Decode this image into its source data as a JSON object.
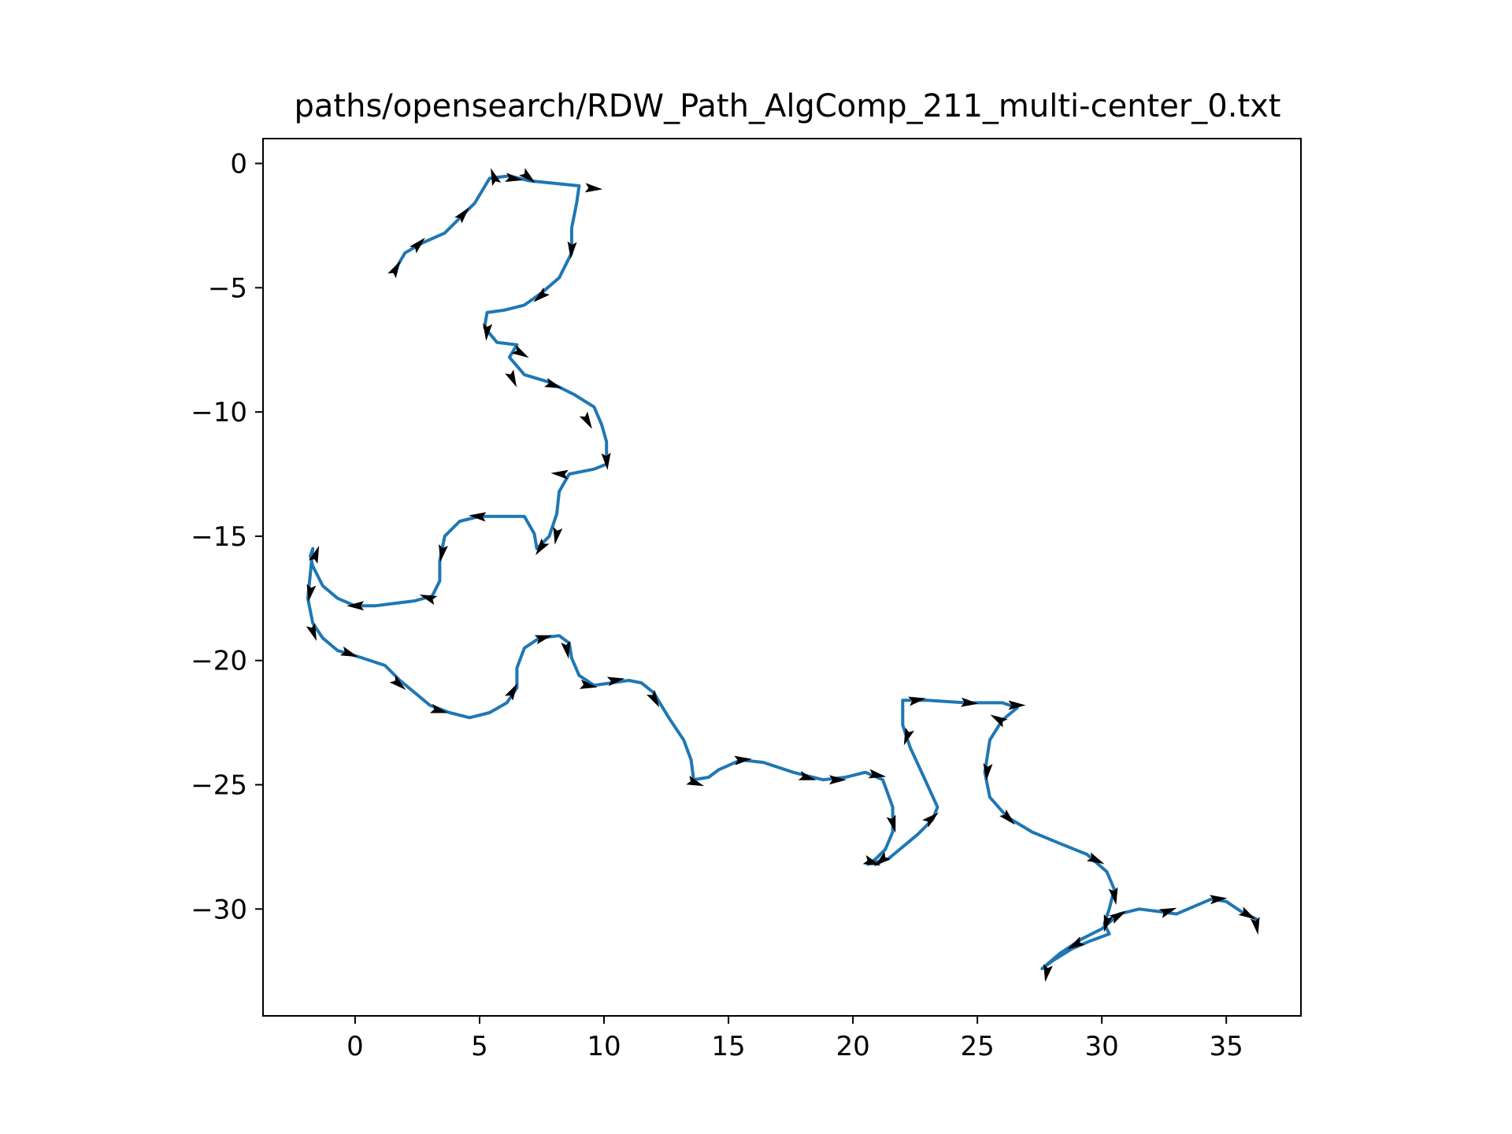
{
  "chart_data": {
    "type": "line",
    "title": "paths/opensearch/RDW_Path_AlgComp_211_multi-center_0.txt",
    "xlabel": "",
    "ylabel": "",
    "xlim": [
      -3.7,
      38.0
    ],
    "ylim": [
      -34.3,
      1.0
    ],
    "x_ticks": [
      0,
      5,
      10,
      15,
      20,
      25,
      30,
      35
    ],
    "x_tick_labels": [
      "0",
      "5",
      "10",
      "15",
      "20",
      "25",
      "30",
      "35"
    ],
    "y_ticks": [
      0,
      -5,
      -10,
      -15,
      -20,
      -25,
      -30
    ],
    "y_tick_labels": [
      "0",
      "−5",
      "−10",
      "−15",
      "−20",
      "−25",
      "−30"
    ],
    "grid": false,
    "legend": "none",
    "line_color": "#1f77b4",
    "arrow_color": "#000000",
    "path": [
      [
        1.6,
        -4.3
      ],
      [
        2.0,
        -3.6
      ],
      [
        2.7,
        -3.2
      ],
      [
        3.6,
        -2.8
      ],
      [
        4.2,
        -2.2
      ],
      [
        4.8,
        -1.6
      ],
      [
        5.4,
        -0.6
      ],
      [
        6.2,
        -0.5
      ],
      [
        7.0,
        -0.7
      ],
      [
        8.0,
        -0.8
      ],
      [
        9.0,
        -0.9
      ],
      [
        8.9,
        -1.6
      ],
      [
        8.7,
        -2.6
      ],
      [
        8.7,
        -3.6
      ],
      [
        8.2,
        -4.6
      ],
      [
        7.5,
        -5.2
      ],
      [
        6.8,
        -5.7
      ],
      [
        6.0,
        -5.9
      ],
      [
        5.3,
        -6.0
      ],
      [
        5.2,
        -6.6
      ],
      [
        5.7,
        -7.2
      ],
      [
        6.5,
        -7.3
      ],
      [
        6.2,
        -7.8
      ],
      [
        6.8,
        -8.5
      ],
      [
        7.8,
        -8.8
      ],
      [
        8.8,
        -9.3
      ],
      [
        9.6,
        -9.8
      ],
      [
        9.9,
        -10.5
      ],
      [
        10.1,
        -11.2
      ],
      [
        10.1,
        -12.1
      ],
      [
        9.6,
        -12.3
      ],
      [
        8.6,
        -12.5
      ],
      [
        8.2,
        -13.2
      ],
      [
        8.1,
        -14.1
      ],
      [
        7.8,
        -15.0
      ],
      [
        7.3,
        -15.5
      ],
      [
        7.2,
        -14.9
      ],
      [
        6.8,
        -14.2
      ],
      [
        6.0,
        -14.2
      ],
      [
        5.0,
        -14.2
      ],
      [
        4.2,
        -14.4
      ],
      [
        3.6,
        -15.0
      ],
      [
        3.4,
        -16.0
      ],
      [
        3.4,
        -16.8
      ],
      [
        3.1,
        -17.4
      ],
      [
        2.4,
        -17.6
      ],
      [
        1.6,
        -17.7
      ],
      [
        0.8,
        -17.8
      ],
      [
        0.0,
        -17.8
      ],
      [
        -0.7,
        -17.5
      ],
      [
        -1.3,
        -17.0
      ],
      [
        -1.7,
        -16.2
      ],
      [
        -1.8,
        -15.8
      ],
      [
        -1.7,
        -15.5
      ],
      [
        -1.8,
        -16.5
      ],
      [
        -1.9,
        -17.5
      ],
      [
        -1.7,
        -18.5
      ],
      [
        -1.3,
        -19.1
      ],
      [
        -0.7,
        -19.6
      ],
      [
        0.3,
        -19.9
      ],
      [
        1.2,
        -20.2
      ],
      [
        1.8,
        -20.8
      ],
      [
        2.4,
        -21.3
      ],
      [
        3.0,
        -21.8
      ],
      [
        3.8,
        -22.1
      ],
      [
        4.6,
        -22.3
      ],
      [
        5.4,
        -22.1
      ],
      [
        6.1,
        -21.7
      ],
      [
        6.5,
        -21.1
      ],
      [
        6.5,
        -20.3
      ],
      [
        6.8,
        -19.5
      ],
      [
        7.4,
        -19.1
      ],
      [
        8.2,
        -19.0
      ],
      [
        8.6,
        -19.3
      ],
      [
        8.7,
        -19.9
      ],
      [
        9.0,
        -20.6
      ],
      [
        9.6,
        -21.0
      ],
      [
        10.3,
        -20.9
      ],
      [
        11.0,
        -20.8
      ],
      [
        11.5,
        -20.9
      ],
      [
        12.0,
        -21.3
      ],
      [
        12.6,
        -22.3
      ],
      [
        13.2,
        -23.2
      ],
      [
        13.5,
        -24.0
      ],
      [
        13.6,
        -24.8
      ],
      [
        14.2,
        -24.7
      ],
      [
        14.6,
        -24.4
      ],
      [
        15.5,
        -24.0
      ],
      [
        16.4,
        -24.1
      ],
      [
        17.6,
        -24.5
      ],
      [
        18.8,
        -24.8
      ],
      [
        19.7,
        -24.7
      ],
      [
        20.5,
        -24.5
      ],
      [
        21.2,
        -24.8
      ],
      [
        21.6,
        -25.9
      ],
      [
        21.6,
        -26.9
      ],
      [
        21.3,
        -27.6
      ],
      [
        20.9,
        -28.0
      ],
      [
        20.6,
        -28.2
      ],
      [
        21.4,
        -28.0
      ],
      [
        22.0,
        -27.5
      ],
      [
        22.6,
        -27.0
      ],
      [
        23.2,
        -26.4
      ],
      [
        23.4,
        -25.9
      ],
      [
        22.9,
        -24.8
      ],
      [
        22.3,
        -23.5
      ],
      [
        22.0,
        -22.6
      ],
      [
        22.0,
        -21.6
      ],
      [
        23.0,
        -21.6
      ],
      [
        24.5,
        -21.7
      ],
      [
        26.0,
        -21.7
      ],
      [
        26.6,
        -21.9
      ],
      [
        26.0,
        -22.4
      ],
      [
        25.5,
        -23.2
      ],
      [
        25.3,
        -24.5
      ],
      [
        25.5,
        -25.5
      ],
      [
        26.2,
        -26.3
      ],
      [
        27.2,
        -26.9
      ],
      [
        28.4,
        -27.4
      ],
      [
        29.4,
        -27.8
      ],
      [
        30.2,
        -28.5
      ],
      [
        30.5,
        -29.2
      ],
      [
        30.3,
        -30.0
      ],
      [
        30.1,
        -30.6
      ],
      [
        30.3,
        -31.0
      ],
      [
        29.5,
        -31.3
      ],
      [
        28.8,
        -31.6
      ],
      [
        28.0,
        -32.1
      ],
      [
        27.6,
        -32.4
      ],
      [
        28.3,
        -31.8
      ],
      [
        29.2,
        -31.2
      ],
      [
        30.0,
        -30.8
      ],
      [
        30.7,
        -30.2
      ],
      [
        31.5,
        -30.0
      ],
      [
        32.3,
        -30.1
      ],
      [
        33.0,
        -30.2
      ],
      [
        33.7,
        -29.9
      ],
      [
        34.4,
        -29.6
      ],
      [
        35.0,
        -29.7
      ],
      [
        35.6,
        -30.1
      ],
      [
        36.2,
        -30.4
      ]
    ],
    "arrows": [
      [
        1.6,
        -4.3,
        60
      ],
      [
        2.5,
        -3.3,
        45
      ],
      [
        4.3,
        -2.1,
        50
      ],
      [
        5.6,
        -0.6,
        110
      ],
      [
        6.3,
        -0.6,
        -10
      ],
      [
        6.9,
        -0.5,
        -40
      ],
      [
        9.5,
        -1.0,
        -5
      ],
      [
        8.7,
        -3.4,
        -95
      ],
      [
        7.5,
        -5.3,
        -140
      ],
      [
        5.3,
        -6.7,
        -95
      ],
      [
        6.6,
        -7.6,
        -30
      ],
      [
        6.3,
        -8.6,
        -65
      ],
      [
        7.9,
        -8.9,
        -20
      ],
      [
        9.3,
        -10.3,
        -60
      ],
      [
        10.1,
        -11.9,
        -85
      ],
      [
        8.3,
        -12.5,
        175
      ],
      [
        8.1,
        -14.9,
        -100
      ],
      [
        7.5,
        -15.4,
        -125
      ],
      [
        5.0,
        -14.2,
        175
      ],
      [
        3.5,
        -15.6,
        -100
      ],
      [
        3.0,
        -17.5,
        160
      ],
      [
        0.1,
        -17.8,
        180
      ],
      [
        -1.6,
        -15.8,
        70
      ],
      [
        -1.8,
        -17.2,
        -100
      ],
      [
        -1.7,
        -18.8,
        -70
      ],
      [
        -0.3,
        -19.7,
        -20
      ],
      [
        1.7,
        -20.9,
        -40
      ],
      [
        3.3,
        -22.0,
        -15
      ],
      [
        6.3,
        -21.3,
        60
      ],
      [
        7.5,
        -19.1,
        15
      ],
      [
        8.5,
        -19.5,
        -80
      ],
      [
        9.3,
        -21.0,
        -10
      ],
      [
        10.4,
        -20.8,
        10
      ],
      [
        12.0,
        -21.5,
        -60
      ],
      [
        13.6,
        -24.9,
        -20
      ],
      [
        15.5,
        -24.0,
        5
      ],
      [
        18.1,
        -24.7,
        -15
      ],
      [
        19.3,
        -24.8,
        0
      ],
      [
        20.9,
        -24.6,
        -10
      ],
      [
        21.6,
        -26.5,
        -75
      ],
      [
        21.2,
        -28.0,
        -140
      ],
      [
        20.7,
        -28.1,
        -20
      ],
      [
        23.1,
        -26.4,
        40
      ],
      [
        22.2,
        -23.0,
        -110
      ],
      [
        22.5,
        -21.6,
        10
      ],
      [
        24.6,
        -21.7,
        -5
      ],
      [
        26.5,
        -21.8,
        0
      ],
      [
        25.9,
        -22.4,
        150
      ],
      [
        25.4,
        -24.4,
        -95
      ],
      [
        26.2,
        -26.3,
        -45
      ],
      [
        29.7,
        -28.0,
        -25
      ],
      [
        30.5,
        -29.4,
        -80
      ],
      [
        30.2,
        -30.5,
        -105
      ],
      [
        29.0,
        -31.4,
        -150
      ],
      [
        27.8,
        -32.5,
        -100
      ],
      [
        30.6,
        -30.3,
        30
      ],
      [
        32.6,
        -30.1,
        20
      ],
      [
        34.6,
        -29.6,
        5
      ],
      [
        35.8,
        -30.2,
        -30
      ],
      [
        36.2,
        -30.6,
        -80
      ]
    ]
  }
}
